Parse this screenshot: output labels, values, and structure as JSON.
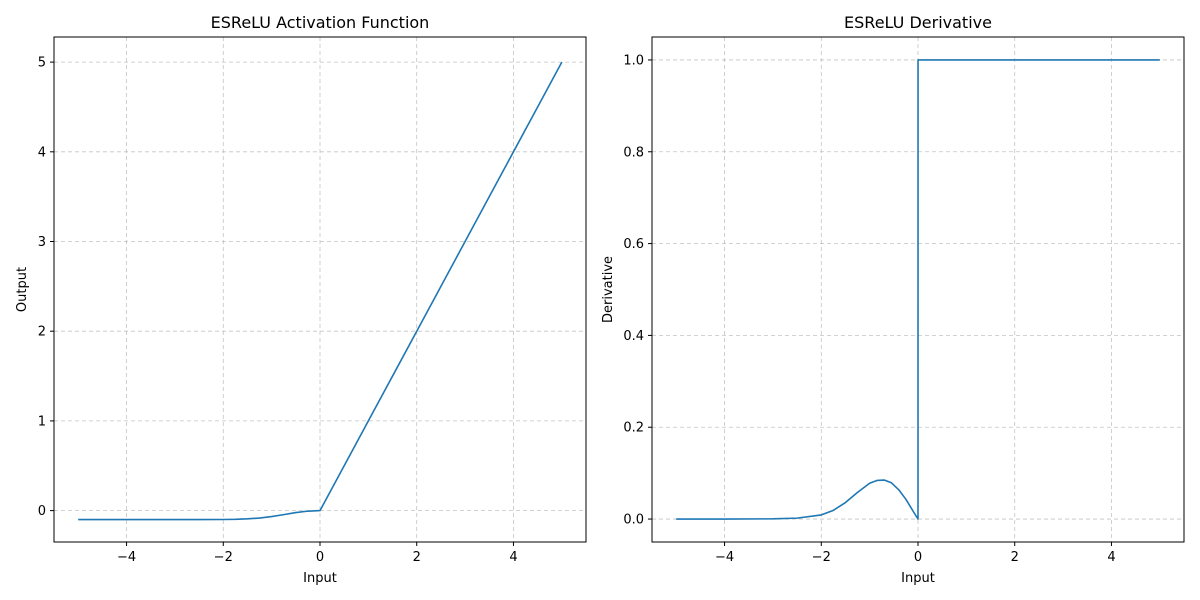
{
  "chart_data": [
    {
      "type": "line",
      "title": "ESReLU Activation Function",
      "xlabel": "Input",
      "ylabel": "Output",
      "xlim": [
        -5.5,
        5.5
      ],
      "ylim": [
        -0.35,
        5.28
      ],
      "xticks": [
        -4,
        -2,
        0,
        2,
        4
      ],
      "xtick_labels": [
        "−4",
        "−2",
        "0",
        "2",
        "4"
      ],
      "yticks": [
        0,
        1,
        2,
        3,
        4,
        5
      ],
      "ytick_labels": [
        "0",
        "1",
        "2",
        "3",
        "4",
        "5"
      ],
      "grid": true,
      "line_color": "#1f77b4",
      "series": [
        {
          "x": [
            -5.0,
            -4.5,
            -4.0,
            -3.5,
            -3.0,
            -2.5,
            -2.0,
            -1.75,
            -1.5,
            -1.25,
            -1.0,
            -0.75,
            -0.5,
            -0.25,
            0.0,
            0.5,
            1.0,
            1.5,
            2.0,
            2.5,
            3.0,
            3.5,
            4.0,
            4.5,
            5.0
          ],
          "y": [
            -0.1,
            -0.1,
            -0.1,
            -0.1,
            -0.1,
            -0.1,
            -0.099,
            -0.097,
            -0.092,
            -0.083,
            -0.066,
            -0.045,
            -0.022,
            -0.006,
            0.0,
            0.5,
            1.0,
            1.5,
            2.0,
            2.5,
            3.0,
            3.5,
            4.0,
            4.5,
            5.0
          ]
        }
      ]
    },
    {
      "type": "line",
      "title": "ESReLU Derivative",
      "xlabel": "Input",
      "ylabel": "Derivative",
      "xlim": [
        -5.5,
        5.5
      ],
      "ylim": [
        -0.05,
        1.05
      ],
      "xticks": [
        -4,
        -2,
        0,
        2,
        4
      ],
      "xtick_labels": [
        "−4",
        "−2",
        "0",
        "2",
        "4"
      ],
      "yticks": [
        0.0,
        0.2,
        0.4,
        0.6,
        0.8,
        1.0
      ],
      "ytick_labels": [
        "0.0",
        "0.2",
        "0.4",
        "0.6",
        "0.8",
        "1.0"
      ],
      "grid": true,
      "line_color": "#1f77b4",
      "series": [
        {
          "x": [
            -5.0,
            -4.0,
            -3.0,
            -2.5,
            -2.0,
            -1.75,
            -1.5,
            -1.25,
            -1.0,
            -0.85,
            -0.7,
            -0.55,
            -0.4,
            -0.25,
            -0.1,
            0.0,
            0.001,
            5.0
          ],
          "y": [
            0.0,
            0.0,
            0.0005,
            0.002,
            0.009,
            0.019,
            0.036,
            0.058,
            0.078,
            0.084,
            0.085,
            0.079,
            0.064,
            0.043,
            0.017,
            0.0,
            1.0,
            1.0
          ]
        }
      ]
    }
  ]
}
